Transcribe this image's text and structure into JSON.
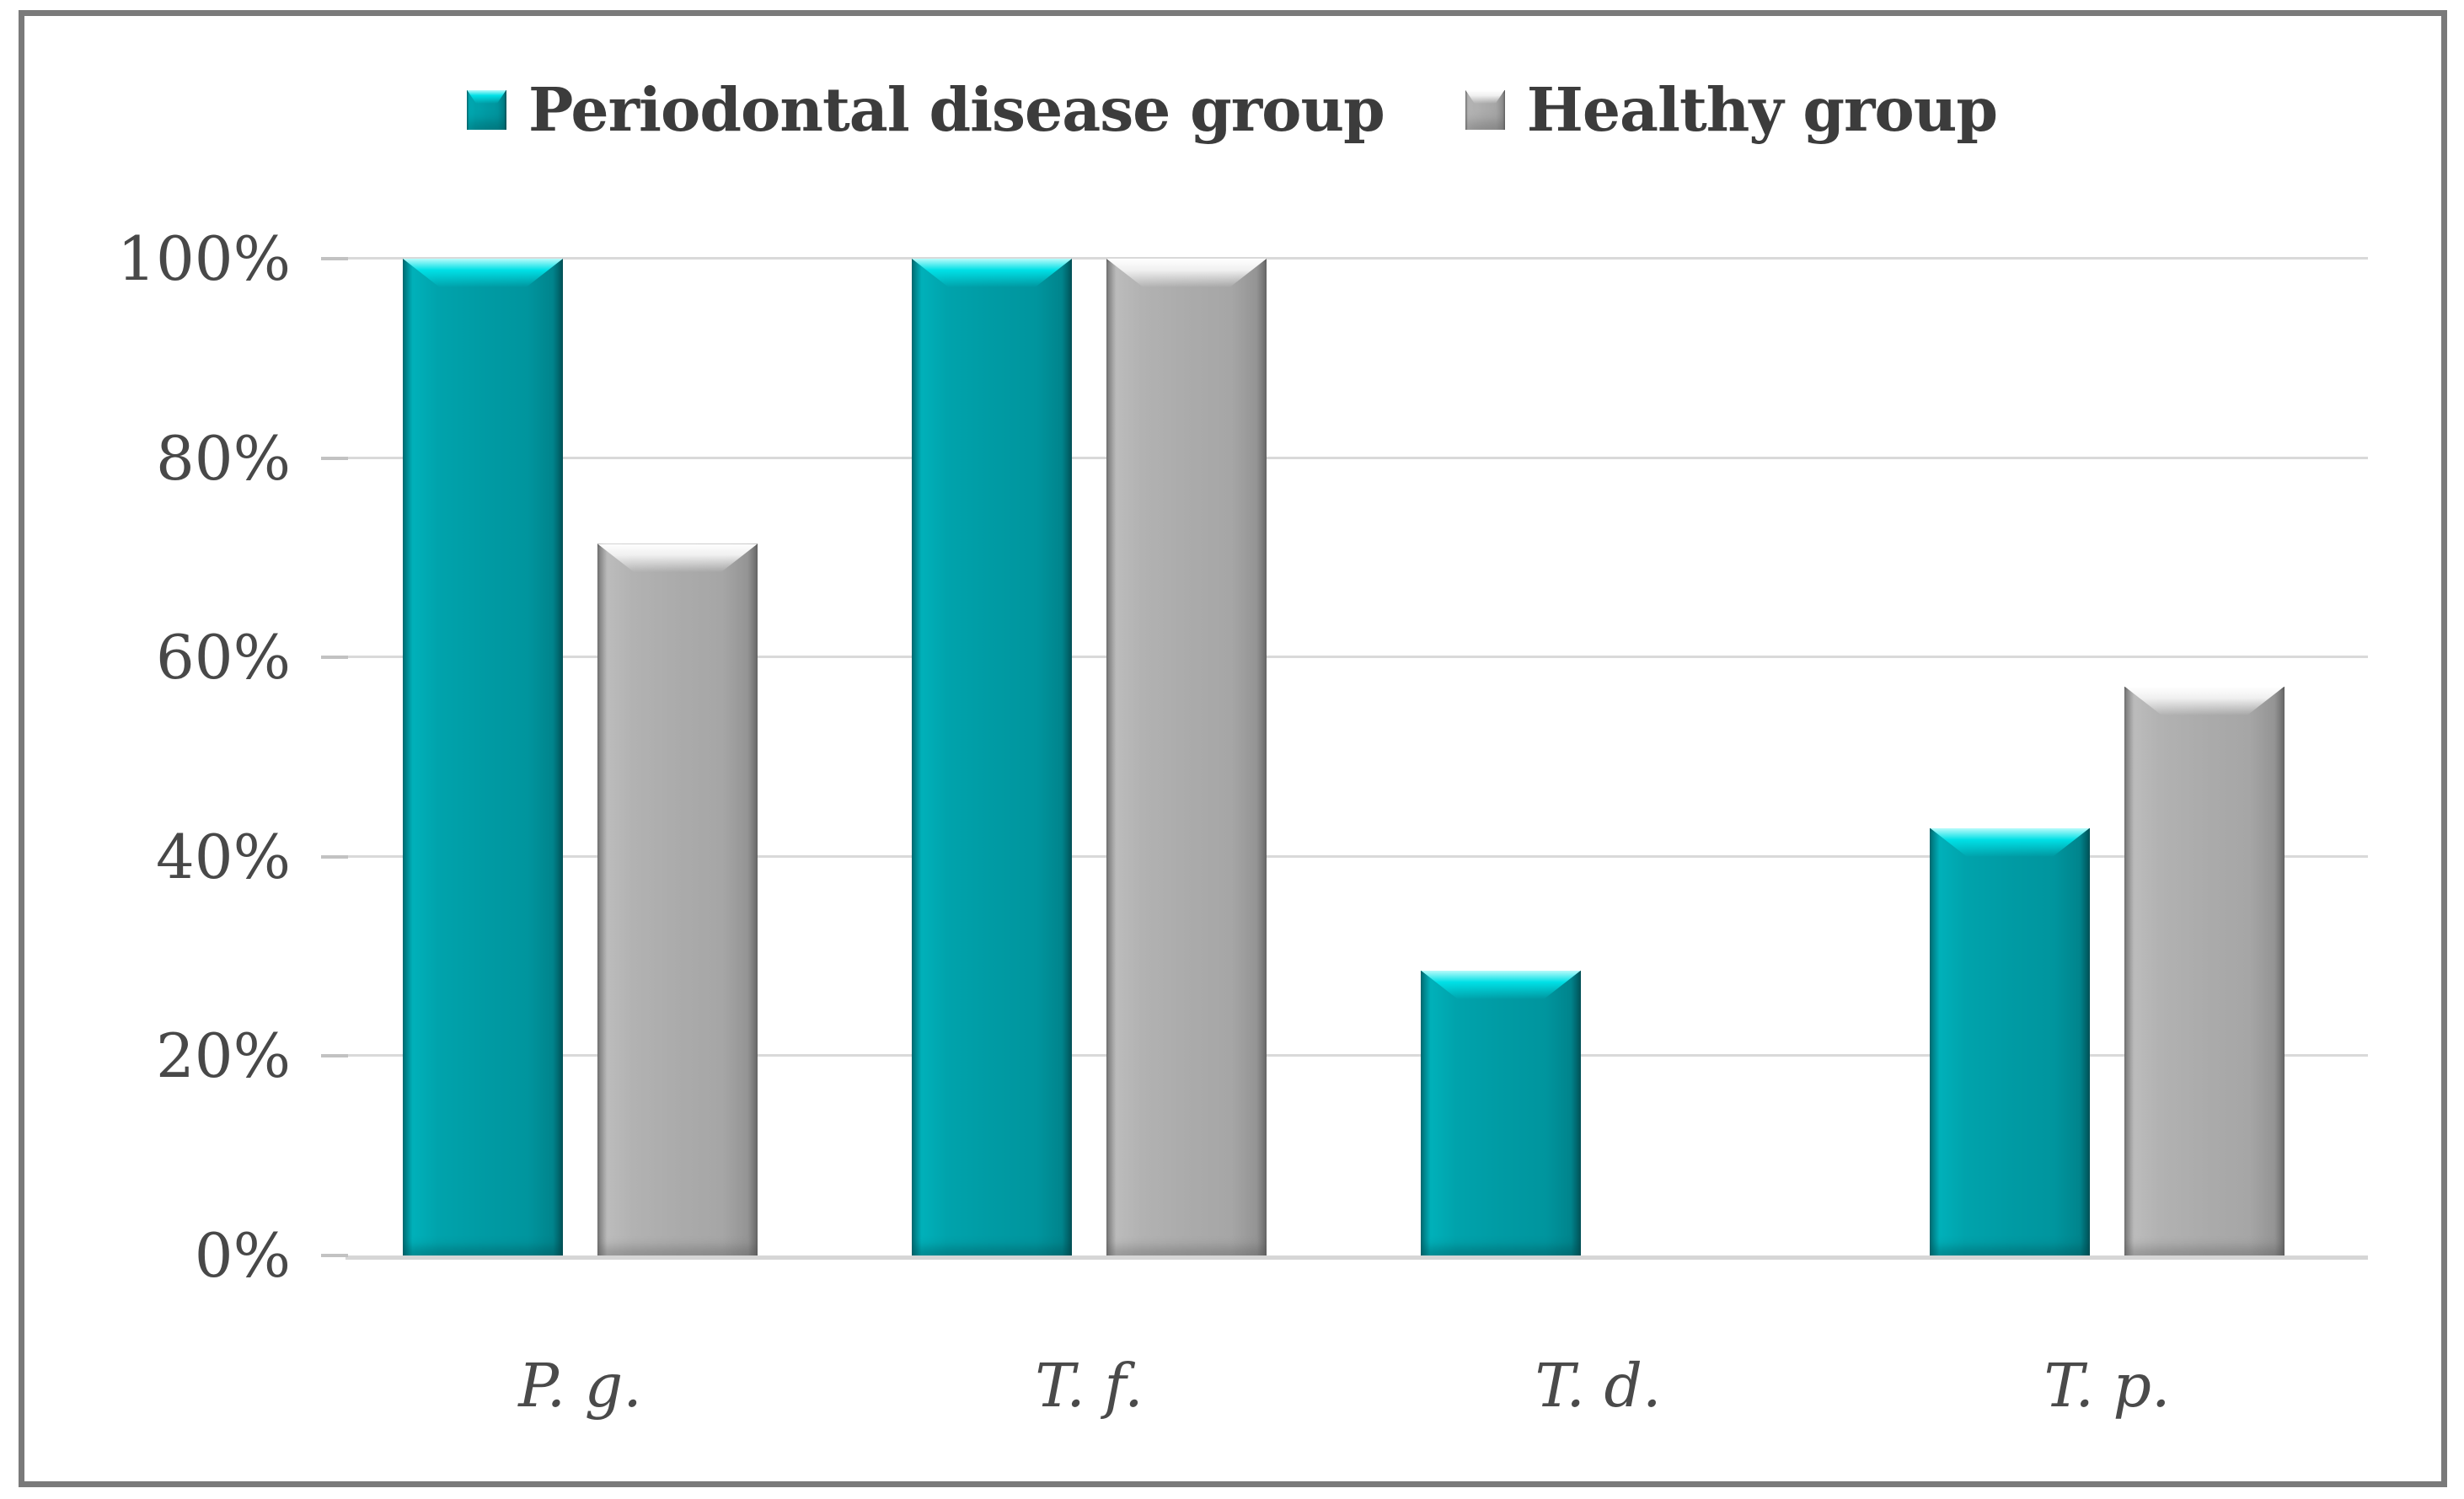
{
  "chart_data": {
    "type": "bar",
    "title": "",
    "categories": [
      "P. g.",
      "T. f.",
      "T. d.",
      "T. p."
    ],
    "series": [
      {
        "name": "Periodontal disease group",
        "color": "#009BA4",
        "values": [
          100,
          100,
          28.6,
          42.9
        ]
      },
      {
        "name": "Healthy group",
        "color": "#ACACAC",
        "values": [
          71.4,
          100,
          0,
          57.1
        ]
      }
    ],
    "xlabel": "",
    "ylabel": "",
    "ylim": [
      0,
      100
    ],
    "yticks": [
      "0%",
      "20%",
      "40%",
      "60%",
      "80%",
      "100%"
    ],
    "grid": "horizontal gridlines every 20%",
    "legend_position": "top-center",
    "bar_style": "3d-beveled-rectangles"
  },
  "legend": {
    "items": [
      {
        "label": "Periodontal disease group",
        "swatch": "teal-3d-square-icon",
        "color": "#009BA4"
      },
      {
        "label": "Healthy group",
        "swatch": "gray-3d-square-icon",
        "color": "#ACACAC"
      }
    ]
  },
  "colors": {
    "teal_bar": "#009BA4",
    "teal_bevel_highlight": "#00E0E6",
    "gray_bar": "#ACACAC",
    "gray_bevel_highlight": "#F5F5F5",
    "gridline": "#D9D9D9",
    "axis_baseline": "#D6D6D6",
    "axis_text": "#4A4A4A",
    "legend_text": "#3C3C3C",
    "frame_border": "#7A7A7A",
    "background": "#FFFFFF"
  }
}
